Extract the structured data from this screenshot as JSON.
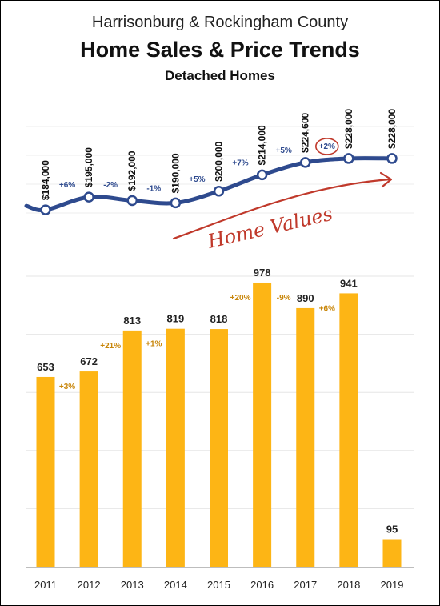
{
  "header": {
    "line1": "Harrisonburg & Rockingham County",
    "line2": "Home Sales & Price Trends",
    "line3": "Detached Homes"
  },
  "annotation": {
    "text": "Home Values",
    "color": "#c0392b"
  },
  "colors": {
    "bar": "#FDB515",
    "line": "#2E4A8E",
    "bar_change": "#C8860A",
    "line_change": "#2E4A8E"
  },
  "chart_data": [
    {
      "type": "line",
      "x": [
        "2011",
        "2012",
        "2013",
        "2014",
        "2015",
        "2016",
        "2017",
        "2018",
        "2019"
      ],
      "values": [
        184000,
        195000,
        192000,
        190000,
        200000,
        214000,
        224600,
        228000,
        228000
      ],
      "value_labels": [
        "$184,000",
        "$195,000",
        "$192,000",
        "$190,000",
        "$200,000",
        "$214,000",
        "$224,600",
        "$228,000",
        "$228,000"
      ],
      "change_labels": [
        "+6%",
        "-2%",
        "-1%",
        "+5%",
        "+7%",
        "+5%",
        "+2%"
      ]
    },
    {
      "type": "bar",
      "categories": [
        "2011",
        "2012",
        "2013",
        "2014",
        "2015",
        "2016",
        "2017",
        "2018",
        "2019"
      ],
      "values": [
        653,
        672,
        813,
        819,
        818,
        978,
        890,
        941,
        95
      ],
      "change_labels": [
        "+3%",
        "+21%",
        "+1%",
        "",
        "+20%",
        "-9%",
        "+6%",
        ""
      ],
      "ylim": [
        0,
        1000
      ],
      "grid": true
    }
  ]
}
